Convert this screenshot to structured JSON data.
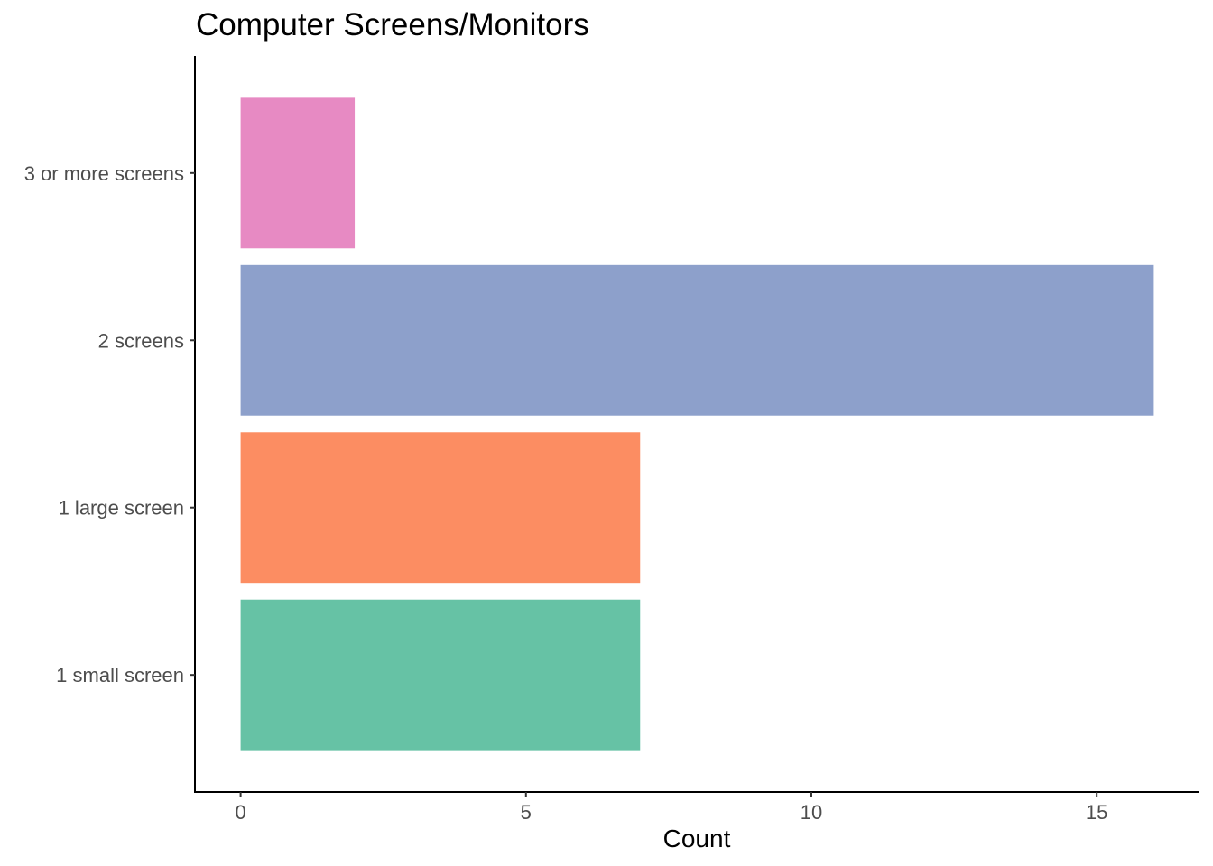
{
  "chart_data": {
    "type": "bar",
    "orientation": "horizontal",
    "title": "Computer Screens/Monitors",
    "xlabel": "Count",
    "ylabel": "",
    "categories": [
      "1 small screen",
      "1 large screen",
      "2 screens",
      "3 or more screens"
    ],
    "values": [
      7,
      7,
      16,
      2
    ],
    "colors": [
      "#66c2a5",
      "#fc8d62",
      "#8da0cb",
      "#e78ac3"
    ],
    "xlim": [
      -0.8,
      16.8
    ],
    "xticks": [
      0,
      5,
      10,
      15
    ],
    "grid": false,
    "legend": "none"
  }
}
